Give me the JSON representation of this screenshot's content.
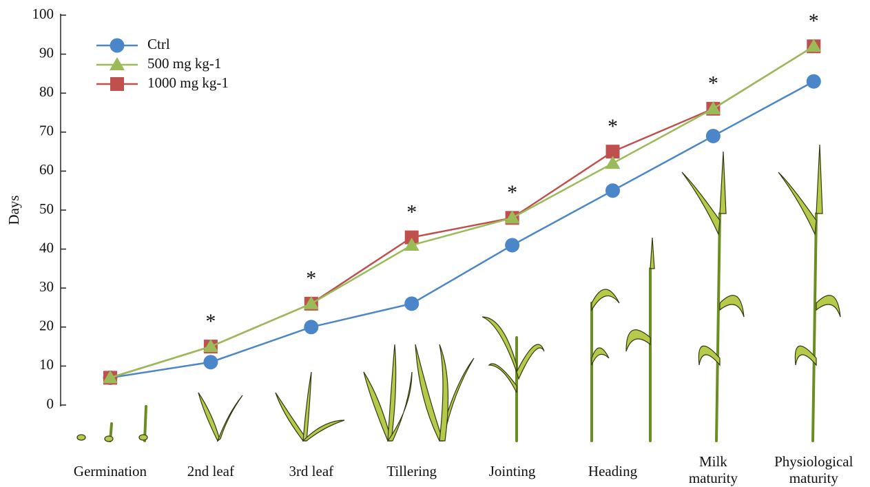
{
  "chart_data": {
    "type": "line",
    "y_label": "Days",
    "categories": [
      "Germination",
      "2nd leaf",
      "3rd leaf",
      "Tillering",
      "Jointing",
      "Heading",
      "Milk maturity",
      "Physiological maturity"
    ],
    "series": [
      {
        "name": "Ctrl",
        "color": "#4a86c8",
        "marker": "circle",
        "values": [
          7,
          11,
          20,
          26,
          41,
          55,
          69,
          83
        ]
      },
      {
        "name": "1000 mg kg-1",
        "color": "#c0504d",
        "marker": "square",
        "values": [
          7,
          15,
          26,
          43,
          48,
          65,
          76,
          92
        ]
      },
      {
        "name": "500 mg kg-1",
        "color": "#9bbb59",
        "marker": "triangle",
        "values": [
          7,
          15,
          26,
          41,
          48,
          62,
          76,
          92
        ]
      }
    ],
    "legend_order": [
      0,
      2,
      1
    ],
    "annotations": [
      null,
      "*",
      "*",
      "*",
      "*",
      "*",
      "*",
      "*"
    ],
    "ylim": [
      0,
      100
    ],
    "yticks": [
      0,
      10,
      20,
      30,
      40,
      50,
      60,
      70,
      80,
      90,
      100
    ]
  }
}
